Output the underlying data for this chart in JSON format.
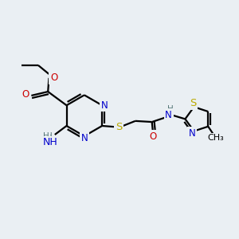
{
  "background_color": "#eaeff3",
  "bond_color": "#000000",
  "line_width": 1.6,
  "atom_colors": {
    "C": "#000000",
    "N": "#0000cc",
    "O": "#cc0000",
    "S": "#bbaa00",
    "H": "#557777"
  },
  "font_size": 8.5,
  "fig_size": [
    3.0,
    3.0
  ],
  "dpi": 100,
  "xlim": [
    0,
    12
  ],
  "ylim": [
    0,
    12
  ]
}
